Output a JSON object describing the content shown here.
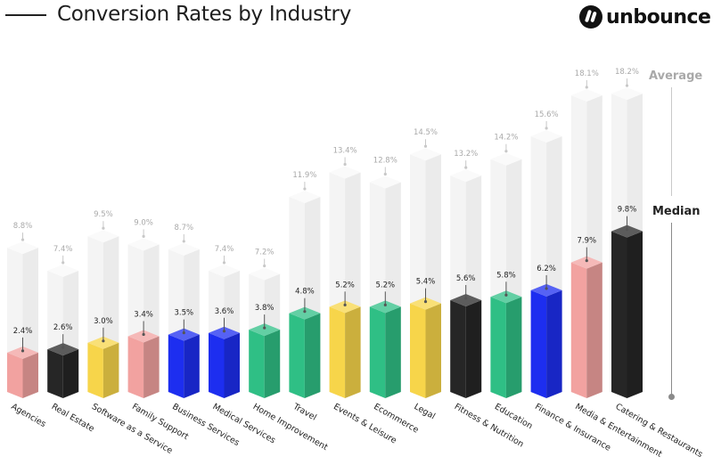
{
  "header": {
    "title": "Conversion Rates by Industry",
    "brand": "unbounce"
  },
  "legend": {
    "average_label": "Average",
    "median_label": "Median"
  },
  "colors": {
    "pink": "#f2a2a0",
    "black": "#262626",
    "yellow": "#f7d54a",
    "blue": "#1d2ef0",
    "green": "#2fbf85",
    "ghost": "#f3f3f3",
    "avg_text": "#a9a9a9",
    "median_text": "#222222"
  },
  "chart_data": {
    "type": "bar",
    "title": "Conversion Rates by Industry",
    "categories": [
      "Agencies",
      "Real Estate",
      "Software as a Service",
      "Family Support",
      "Business Services",
      "Medical Services",
      "Home Improvement",
      "Travel",
      "Events & Leisure",
      "Ecommerce",
      "Legal",
      "Fitness & Nutrition",
      "Education",
      "Finance & Insurance",
      "Media & Entertainment",
      "Catering & Restaurants"
    ],
    "series": [
      {
        "name": "Median",
        "values": [
          2.4,
          2.6,
          3.0,
          3.4,
          3.5,
          3.6,
          3.8,
          4.8,
          5.2,
          5.2,
          5.4,
          5.6,
          5.8,
          6.2,
          7.9,
          9.8
        ],
        "labels": [
          "2.4%",
          "2.6%",
          "3.0%",
          "3.4%",
          "3.5%",
          "3.6%",
          "3.8%",
          "4.8%",
          "5.2%",
          "5.2%",
          "5.4%",
          "5.6%",
          "5.8%",
          "6.2%",
          "7.9%",
          "9.8%"
        ]
      },
      {
        "name": "Average",
        "values": [
          8.8,
          7.4,
          9.5,
          9.0,
          8.7,
          7.4,
          7.2,
          11.9,
          13.4,
          12.8,
          14.5,
          13.2,
          14.2,
          15.6,
          18.1,
          18.2
        ],
        "labels": [
          "8.8%",
          "7.4%",
          "9.5%",
          "9.0%",
          "8.7%",
          "7.4%",
          "7.2%",
          "11.9%",
          "13.4%",
          "12.8%",
          "14.5%",
          "13.2%",
          "14.2%",
          "15.6%",
          "18.1%",
          "18.2%"
        ]
      }
    ],
    "bar_colors": [
      "pink",
      "black",
      "yellow",
      "pink",
      "blue",
      "blue",
      "green",
      "green",
      "yellow",
      "green",
      "yellow",
      "black",
      "green",
      "blue",
      "pink",
      "black"
    ],
    "grid": false,
    "legend_position": "right"
  }
}
